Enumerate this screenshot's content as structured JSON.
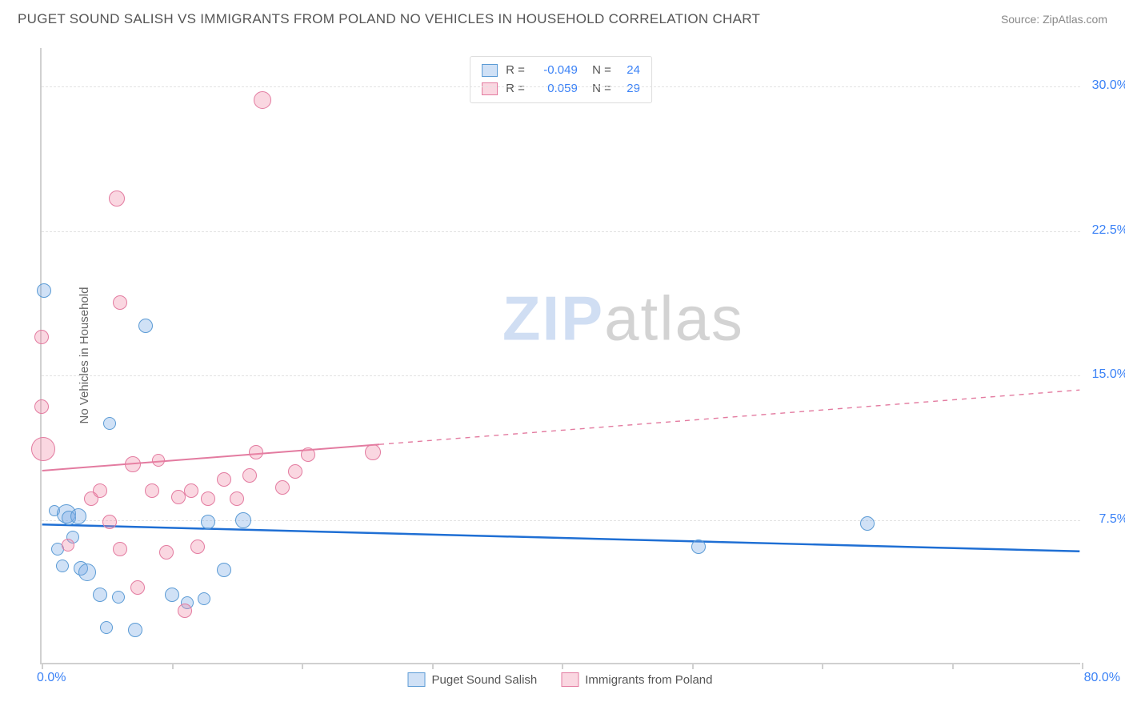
{
  "title": "PUGET SOUND SALISH VS IMMIGRANTS FROM POLAND NO VEHICLES IN HOUSEHOLD CORRELATION CHART",
  "source": "Source: ZipAtlas.com",
  "watermark": {
    "a": "ZIP",
    "b": "atlas"
  },
  "chart": {
    "type": "scatter",
    "background_color": "#ffffff",
    "grid_color": "#e2e2e2",
    "axis_color": "#d0d0d0",
    "label_color": "#666666",
    "value_color": "#3b82f6",
    "y_label": "No Vehicles in Household",
    "xlim": [
      0,
      80
    ],
    "ylim": [
      0,
      32
    ],
    "x_ticks": [
      0,
      10,
      20,
      30,
      40,
      50,
      60,
      70,
      80
    ],
    "x_tick_labels": {
      "0": "0.0%",
      "80": "80.0%"
    },
    "y_gridlines": [
      7.5,
      15.0,
      22.5,
      30.0
    ],
    "y_tick_labels": {
      "7.5": "7.5%",
      "15.0": "15.0%",
      "22.5": "22.5%",
      "30.0": "30.0%"
    },
    "series": [
      {
        "id": "puget",
        "label": "Puget Sound Salish",
        "fill": "rgba(120,170,230,0.35)",
        "stroke": "#5b9bd5",
        "r_value": "-0.049",
        "n_value": "24",
        "trend": {
          "color": "#1f6fd4",
          "width": 2.5,
          "x1": 0,
          "y1": 7.2,
          "x2": 80,
          "y2": 5.8,
          "dash_from_x": 80
        },
        "points": [
          {
            "x": 0.2,
            "y": 19.4,
            "r": 9
          },
          {
            "x": 5.2,
            "y": 12.5,
            "r": 8
          },
          {
            "x": 8.0,
            "y": 17.6,
            "r": 9
          },
          {
            "x": 1.0,
            "y": 8.0,
            "r": 7
          },
          {
            "x": 1.9,
            "y": 7.8,
            "r": 12
          },
          {
            "x": 2.1,
            "y": 7.6,
            "r": 9
          },
          {
            "x": 2.8,
            "y": 7.7,
            "r": 10
          },
          {
            "x": 1.2,
            "y": 6.0,
            "r": 8
          },
          {
            "x": 1.6,
            "y": 5.1,
            "r": 8
          },
          {
            "x": 3.0,
            "y": 5.0,
            "r": 9
          },
          {
            "x": 3.5,
            "y": 4.8,
            "r": 11
          },
          {
            "x": 4.5,
            "y": 3.6,
            "r": 9
          },
          {
            "x": 5.9,
            "y": 3.5,
            "r": 8
          },
          {
            "x": 10.0,
            "y": 3.6,
            "r": 9
          },
          {
            "x": 11.2,
            "y": 3.2,
            "r": 8
          },
          {
            "x": 12.5,
            "y": 3.4,
            "r": 8
          },
          {
            "x": 14.0,
            "y": 4.9,
            "r": 9
          },
          {
            "x": 15.5,
            "y": 7.5,
            "r": 10
          },
          {
            "x": 12.8,
            "y": 7.4,
            "r": 9
          },
          {
            "x": 5.0,
            "y": 1.9,
            "r": 8
          },
          {
            "x": 7.2,
            "y": 1.8,
            "r": 9
          },
          {
            "x": 50.5,
            "y": 6.1,
            "r": 9
          },
          {
            "x": 63.5,
            "y": 7.3,
            "r": 9
          },
          {
            "x": 2.4,
            "y": 6.6,
            "r": 8
          }
        ]
      },
      {
        "id": "poland",
        "label": "Immigrants from Poland",
        "fill": "rgba(240,140,170,0.35)",
        "stroke": "#e37ba0",
        "r_value": "0.059",
        "n_value": "29",
        "trend": {
          "color": "#e37ba0",
          "width": 2,
          "x1": 0,
          "y1": 10.0,
          "x2": 80,
          "y2": 14.2,
          "dash_from_x": 26
        },
        "points": [
          {
            "x": 17.0,
            "y": 29.3,
            "r": 11
          },
          {
            "x": 5.8,
            "y": 24.2,
            "r": 10
          },
          {
            "x": 6.0,
            "y": 18.8,
            "r": 9
          },
          {
            "x": 0.0,
            "y": 17.0,
            "r": 9
          },
          {
            "x": 0.0,
            "y": 13.4,
            "r": 9
          },
          {
            "x": 0.1,
            "y": 11.2,
            "r": 15
          },
          {
            "x": 3.8,
            "y": 8.6,
            "r": 9
          },
          {
            "x": 4.5,
            "y": 9.0,
            "r": 9
          },
          {
            "x": 5.2,
            "y": 7.4,
            "r": 9
          },
          {
            "x": 6.0,
            "y": 6.0,
            "r": 9
          },
          {
            "x": 7.0,
            "y": 10.4,
            "r": 10
          },
          {
            "x": 8.5,
            "y": 9.0,
            "r": 9
          },
          {
            "x": 9.0,
            "y": 10.6,
            "r": 8
          },
          {
            "x": 10.5,
            "y": 8.7,
            "r": 9
          },
          {
            "x": 11.5,
            "y": 9.0,
            "r": 9
          },
          {
            "x": 12.8,
            "y": 8.6,
            "r": 9
          },
          {
            "x": 14.0,
            "y": 9.6,
            "r": 9
          },
          {
            "x": 15.0,
            "y": 8.6,
            "r": 9
          },
          {
            "x": 16.0,
            "y": 9.8,
            "r": 9
          },
          {
            "x": 16.5,
            "y": 11.0,
            "r": 9
          },
          {
            "x": 18.5,
            "y": 9.2,
            "r": 9
          },
          {
            "x": 19.5,
            "y": 10.0,
            "r": 9
          },
          {
            "x": 20.5,
            "y": 10.9,
            "r": 9
          },
          {
            "x": 7.4,
            "y": 4.0,
            "r": 9
          },
          {
            "x": 9.6,
            "y": 5.8,
            "r": 9
          },
          {
            "x": 11.0,
            "y": 2.8,
            "r": 9
          },
          {
            "x": 12.0,
            "y": 6.1,
            "r": 9
          },
          {
            "x": 25.5,
            "y": 11.0,
            "r": 10
          },
          {
            "x": 2.0,
            "y": 6.2,
            "r": 8
          }
        ]
      }
    ]
  }
}
